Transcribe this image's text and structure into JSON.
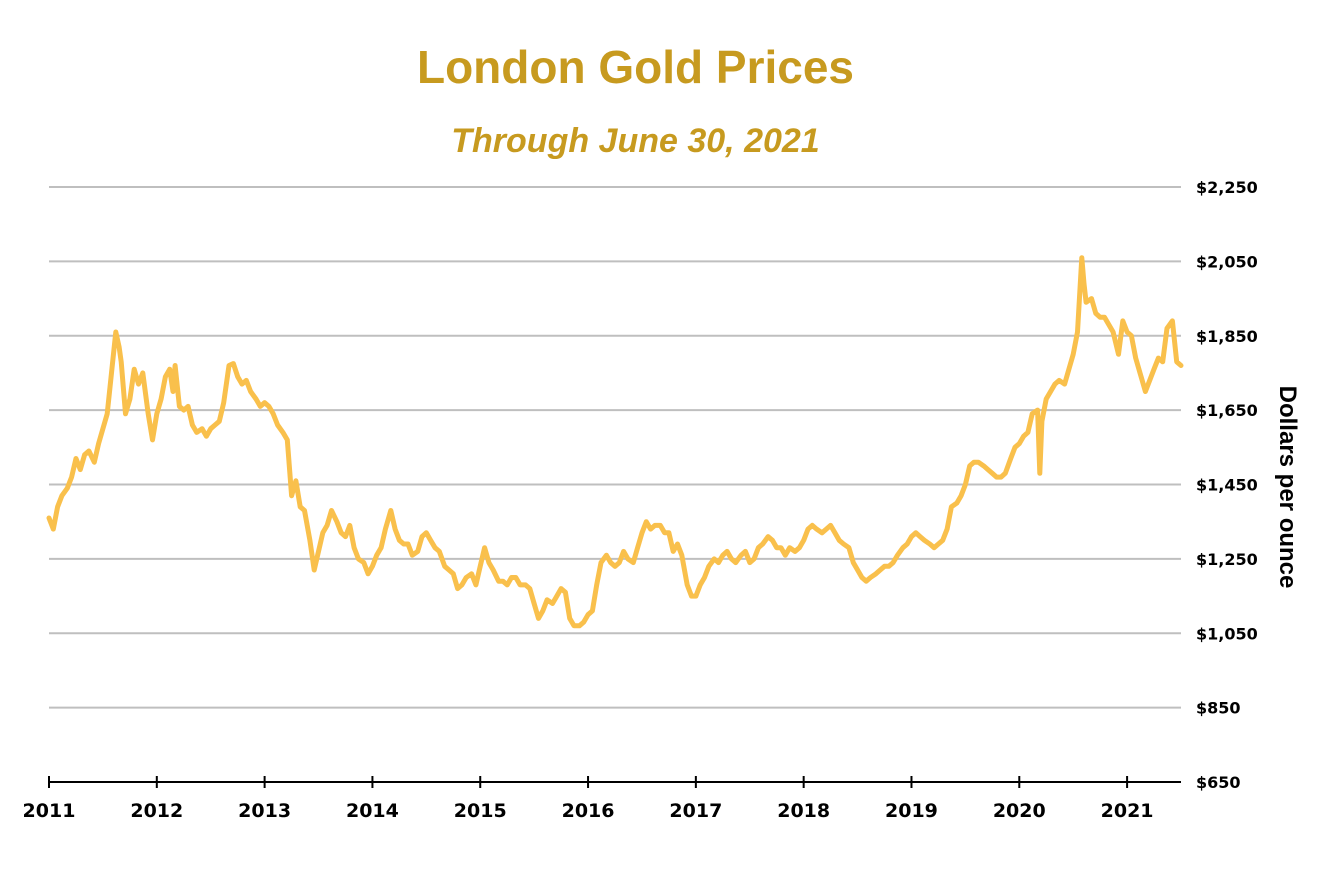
{
  "chart_data": {
    "type": "line",
    "title": "London Gold Prices",
    "subtitle": "Through June 30, 2021",
    "xlabel": "",
    "ylabel": "Dollars per ounce",
    "xlim": [
      2011,
      2021.5
    ],
    "ylim": [
      650,
      2250
    ],
    "y_ticks": [
      650,
      850,
      1050,
      1250,
      1450,
      1650,
      1850,
      2050,
      2250
    ],
    "y_tick_labels": [
      "$650",
      "$850",
      "$1,050",
      "$1,250",
      "$1,450",
      "$1,650",
      "$1,850",
      "$2,050",
      "$2,250"
    ],
    "x_ticks": [
      2011,
      2012,
      2013,
      2014,
      2015,
      2016,
      2017,
      2018,
      2019,
      2020,
      2021
    ],
    "x_tick_labels": [
      "2011",
      "2012",
      "2013",
      "2014",
      "2015",
      "2016",
      "2017",
      "2018",
      "2019",
      "2020",
      "2021"
    ],
    "grid": true,
    "y_axis_position": "right",
    "series": [
      {
        "name": "London Gold Price",
        "color": "#f9c04c",
        "x": [
          2011.0,
          2011.04,
          2011.08,
          2011.12,
          2011.17,
          2011.21,
          2011.25,
          2011.29,
          2011.33,
          2011.37,
          2011.42,
          2011.46,
          2011.5,
          2011.54,
          2011.58,
          2011.62,
          2011.65,
          2011.67,
          2011.71,
          2011.75,
          2011.79,
          2011.83,
          2011.87,
          2011.92,
          2011.96,
          2012.0,
          2012.04,
          2012.08,
          2012.12,
          2012.15,
          2012.17,
          2012.21,
          2012.25,
          2012.29,
          2012.33,
          2012.37,
          2012.42,
          2012.46,
          2012.5,
          2012.54,
          2012.58,
          2012.62,
          2012.67,
          2012.71,
          2012.75,
          2012.79,
          2012.83,
          2012.87,
          2012.92,
          2012.96,
          2013.0,
          2013.04,
          2013.08,
          2013.12,
          2013.17,
          2013.21,
          2013.25,
          2013.29,
          2013.33,
          2013.37,
          2013.42,
          2013.46,
          2013.5,
          2013.54,
          2013.58,
          2013.62,
          2013.67,
          2013.71,
          2013.75,
          2013.79,
          2013.83,
          2013.87,
          2013.92,
          2013.96,
          2014.0,
          2014.04,
          2014.08,
          2014.12,
          2014.17,
          2014.21,
          2014.25,
          2014.29,
          2014.33,
          2014.37,
          2014.42,
          2014.46,
          2014.5,
          2014.54,
          2014.58,
          2014.62,
          2014.67,
          2014.71,
          2014.75,
          2014.79,
          2014.83,
          2014.87,
          2014.92,
          2014.96,
          2015.0,
          2015.04,
          2015.08,
          2015.12,
          2015.17,
          2015.21,
          2015.25,
          2015.29,
          2015.33,
          2015.37,
          2015.42,
          2015.46,
          2015.5,
          2015.54,
          2015.58,
          2015.62,
          2015.67,
          2015.71,
          2015.75,
          2015.79,
          2015.83,
          2015.87,
          2015.92,
          2015.96,
          2016.0,
          2016.04,
          2016.08,
          2016.12,
          2016.17,
          2016.21,
          2016.25,
          2016.29,
          2016.33,
          2016.37,
          2016.42,
          2016.46,
          2016.5,
          2016.54,
          2016.58,
          2016.62,
          2016.67,
          2016.71,
          2016.75,
          2016.79,
          2016.83,
          2016.87,
          2016.92,
          2016.96,
          2017.0,
          2017.04,
          2017.08,
          2017.12,
          2017.17,
          2017.21,
          2017.25,
          2017.29,
          2017.33,
          2017.37,
          2017.42,
          2017.46,
          2017.5,
          2017.54,
          2017.58,
          2017.62,
          2017.67,
          2017.71,
          2017.75,
          2017.79,
          2017.83,
          2017.87,
          2017.92,
          2017.96,
          2018.0,
          2018.04,
          2018.08,
          2018.12,
          2018.17,
          2018.21,
          2018.25,
          2018.29,
          2018.33,
          2018.37,
          2018.42,
          2018.46,
          2018.5,
          2018.54,
          2018.58,
          2018.62,
          2018.67,
          2018.71,
          2018.75,
          2018.79,
          2018.83,
          2018.87,
          2018.92,
          2018.96,
          2019.0,
          2019.04,
          2019.08,
          2019.12,
          2019.17,
          2019.21,
          2019.25,
          2019.29,
          2019.33,
          2019.37,
          2019.42,
          2019.46,
          2019.5,
          2019.54,
          2019.58,
          2019.62,
          2019.67,
          2019.71,
          2019.75,
          2019.79,
          2019.83,
          2019.87,
          2019.92,
          2019.96,
          2020.0,
          2020.04,
          2020.08,
          2020.12,
          2020.17,
          2020.19,
          2020.21,
          2020.25,
          2020.29,
          2020.33,
          2020.37,
          2020.42,
          2020.46,
          2020.5,
          2020.54,
          2020.58,
          2020.6,
          2020.62,
          2020.67,
          2020.71,
          2020.75,
          2020.79,
          2020.83,
          2020.87,
          2020.92,
          2020.96,
          2021.0,
          2021.04,
          2021.08,
          2021.12,
          2021.17,
          2021.21,
          2021.25,
          2021.29,
          2021.33,
          2021.37,
          2021.42,
          2021.46,
          2021.5
        ],
        "values": [
          1360,
          1330,
          1390,
          1420,
          1440,
          1470,
          1520,
          1490,
          1530,
          1540,
          1510,
          1560,
          1600,
          1640,
          1750,
          1860,
          1820,
          1780,
          1640,
          1680,
          1760,
          1720,
          1750,
          1640,
          1570,
          1640,
          1680,
          1740,
          1760,
          1700,
          1770,
          1660,
          1650,
          1660,
          1610,
          1590,
          1600,
          1580,
          1600,
          1610,
          1620,
          1670,
          1770,
          1775,
          1740,
          1720,
          1730,
          1700,
          1680,
          1660,
          1670,
          1660,
          1640,
          1610,
          1590,
          1570,
          1420,
          1460,
          1390,
          1380,
          1300,
          1220,
          1270,
          1320,
          1340,
          1380,
          1350,
          1320,
          1310,
          1340,
          1280,
          1250,
          1240,
          1210,
          1230,
          1260,
          1280,
          1330,
          1380,
          1330,
          1300,
          1290,
          1290,
          1260,
          1270,
          1310,
          1320,
          1300,
          1280,
          1270,
          1230,
          1220,
          1210,
          1170,
          1180,
          1200,
          1210,
          1180,
          1230,
          1280,
          1240,
          1220,
          1190,
          1190,
          1180,
          1200,
          1200,
          1180,
          1180,
          1170,
          1130,
          1090,
          1110,
          1140,
          1130,
          1150,
          1170,
          1160,
          1090,
          1070,
          1070,
          1080,
          1100,
          1110,
          1180,
          1240,
          1260,
          1240,
          1230,
          1240,
          1270,
          1250,
          1240,
          1280,
          1320,
          1350,
          1330,
          1340,
          1340,
          1320,
          1320,
          1270,
          1290,
          1260,
          1180,
          1150,
          1150,
          1180,
          1200,
          1230,
          1250,
          1240,
          1260,
          1270,
          1250,
          1240,
          1260,
          1270,
          1240,
          1250,
          1280,
          1290,
          1310,
          1300,
          1280,
          1280,
          1260,
          1280,
          1270,
          1280,
          1300,
          1330,
          1340,
          1330,
          1320,
          1330,
          1340,
          1320,
          1300,
          1290,
          1280,
          1240,
          1220,
          1200,
          1190,
          1200,
          1210,
          1220,
          1230,
          1230,
          1240,
          1260,
          1280,
          1290,
          1310,
          1320,
          1310,
          1300,
          1290,
          1280,
          1290,
          1300,
          1330,
          1390,
          1400,
          1420,
          1450,
          1500,
          1510,
          1510,
          1500,
          1490,
          1480,
          1470,
          1470,
          1480,
          1520,
          1550,
          1560,
          1580,
          1590,
          1640,
          1650,
          1480,
          1620,
          1680,
          1700,
          1720,
          1730,
          1720,
          1760,
          1800,
          1860,
          2060,
          1990,
          1940,
          1950,
          1910,
          1900,
          1900,
          1880,
          1860,
          1800,
          1890,
          1860,
          1850,
          1790,
          1750,
          1700,
          1730,
          1760,
          1790,
          1780,
          1870,
          1890,
          1780,
          1770
        ]
      }
    ]
  },
  "colors": {
    "title": "#c79a1f",
    "line": "#f9c04c",
    "grid": "#bfbfbf",
    "axis": "#000000"
  }
}
